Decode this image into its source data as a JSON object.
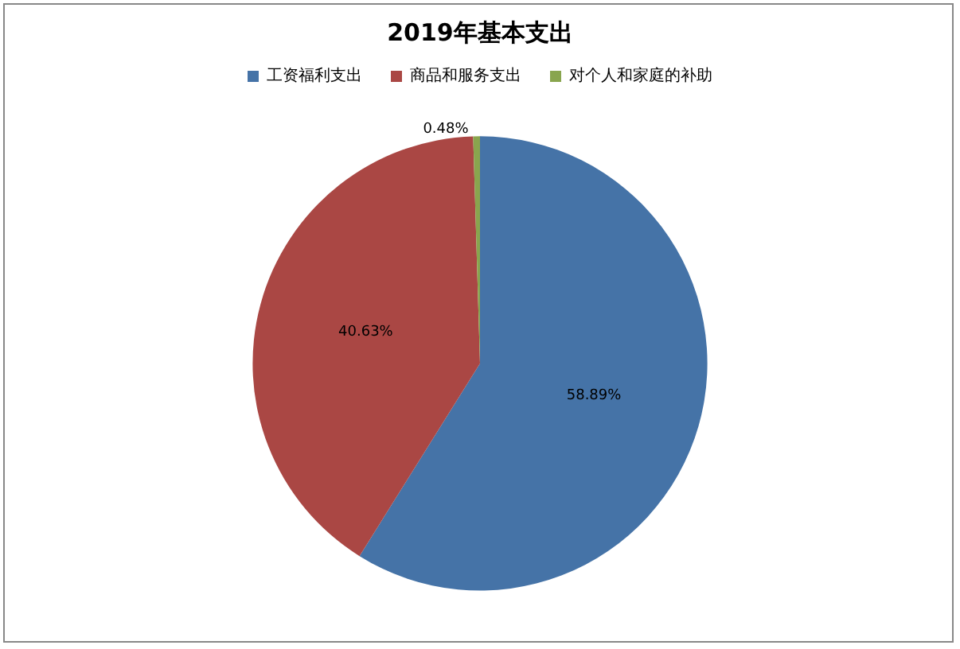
{
  "chart_data": {
    "type": "pie",
    "title": "2019年基本支出",
    "categories": [
      "工资福利支出",
      "商品和服务支出",
      "对个人和家庭的补助"
    ],
    "values": [
      58.89,
      40.63,
      0.48
    ],
    "colors": [
      "#4573a7",
      "#aa4744",
      "#89a54e"
    ],
    "value_labels": [
      "58.89%",
      "40.63%",
      "0.48%"
    ],
    "legend": "top"
  }
}
